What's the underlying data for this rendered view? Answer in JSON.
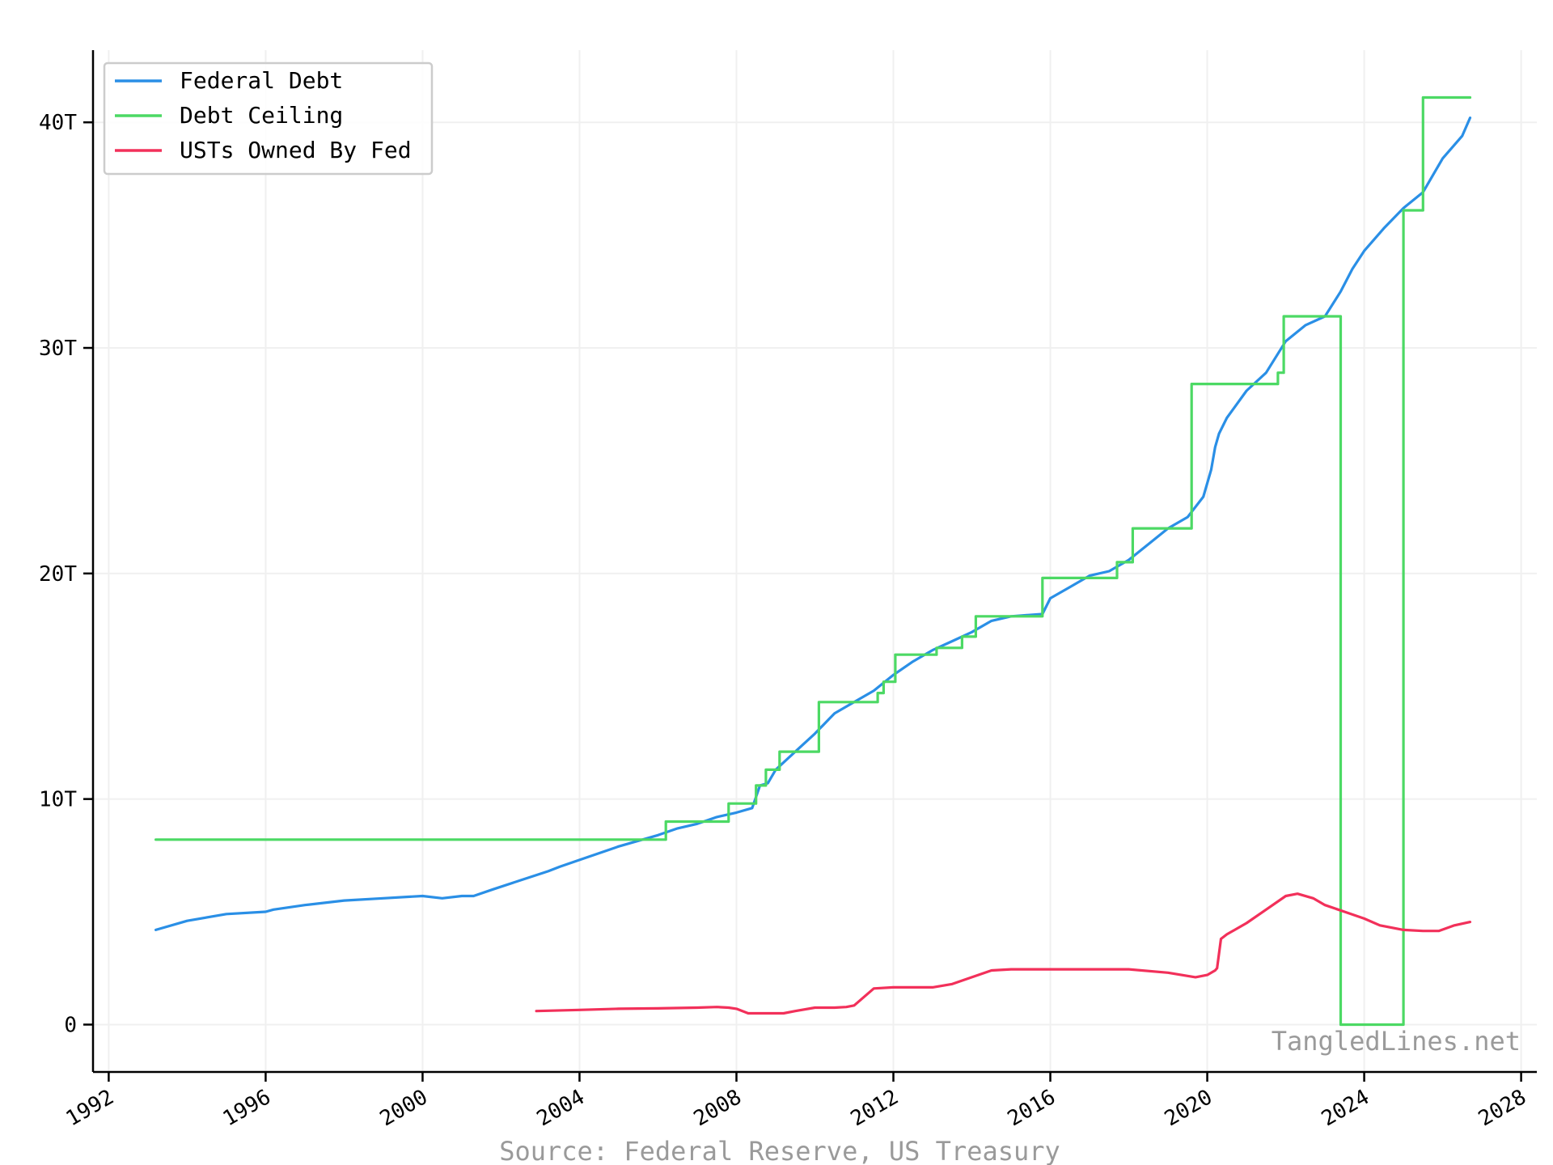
{
  "chart_data": {
    "type": "line",
    "title": "",
    "xlabel": "",
    "ylabel": "",
    "source": "Source: Federal Reserve, US Treasury",
    "watermark": "TangledLines.net",
    "xlim": [
      1991.6,
      2028.4
    ],
    "ylim": [
      -2.1,
      43.2
    ],
    "x_ticks": [
      1992,
      1996,
      2000,
      2004,
      2008,
      2012,
      2016,
      2020,
      2024,
      2028
    ],
    "x_tick_labels": [
      "1992",
      "1996",
      "2000",
      "2004",
      "2008",
      "2012",
      "2016",
      "2020",
      "2024",
      "2028"
    ],
    "y_ticks": [
      0,
      10,
      20,
      30,
      40
    ],
    "y_tick_labels": [
      "0",
      "10T",
      "20T",
      "30T",
      "40T"
    ],
    "grid": true,
    "legend_position": "top-left",
    "series": [
      {
        "name": "Federal Debt",
        "color": "#2a8fe6",
        "x": [
          1993.2,
          1994,
          1995,
          1996,
          1996.2,
          1997,
          1998,
          1999,
          2000,
          2000.5,
          2001,
          2001.3,
          2001.8,
          2002.5,
          2003.2,
          2003.5,
          2004,
          2005,
          2006,
          2006.5,
          2007,
          2007.5,
          2008,
          2008.4,
          2008.6,
          2008.8,
          2009,
          2009.5,
          2010,
          2010.5,
          2011,
          2011.5,
          2012,
          2012.5,
          2013,
          2013.5,
          2014,
          2014.5,
          2015,
          2015.8,
          2016,
          2016.5,
          2017,
          2017.5,
          2018,
          2018.5,
          2019,
          2019.5,
          2019.9,
          2020.1,
          2020.2,
          2020.3,
          2020.5,
          2021,
          2021.5,
          2022,
          2022.5,
          2023,
          2023.4,
          2023.7,
          2024,
          2024.5,
          2025,
          2025.5,
          2026,
          2026.5,
          2026.7
        ],
        "values": [
          4.2,
          4.6,
          4.9,
          5.0,
          5.1,
          5.3,
          5.5,
          5.6,
          5.7,
          5.6,
          5.7,
          5.7,
          6.0,
          6.4,
          6.8,
          7.0,
          7.3,
          7.9,
          8.4,
          8.7,
          8.9,
          9.2,
          9.4,
          9.6,
          10.6,
          10.7,
          11.3,
          12.1,
          12.9,
          13.8,
          14.3,
          14.8,
          15.5,
          16.1,
          16.6,
          17.0,
          17.4,
          17.9,
          18.1,
          18.2,
          18.9,
          19.4,
          19.9,
          20.1,
          20.6,
          21.3,
          22.0,
          22.5,
          23.4,
          24.6,
          25.6,
          26.2,
          26.9,
          28.1,
          28.9,
          30.3,
          31.0,
          31.4,
          32.5,
          33.5,
          34.3,
          35.3,
          36.2,
          36.9,
          38.4,
          39.4,
          40.2
        ]
      },
      {
        "name": "Debt Ceiling",
        "color": "#4cd964",
        "x": [
          1993.2,
          2006.2,
          2006.2,
          2007.8,
          2007.8,
          2008.5,
          2008.5,
          2008.75,
          2008.75,
          2009.1,
          2009.1,
          2010.1,
          2010.1,
          2011.6,
          2011.6,
          2011.75,
          2011.75,
          2012.05,
          2012.05,
          2013.1,
          2013.1,
          2013.75,
          2013.75,
          2014.1,
          2014.1,
          2015.8,
          2015.8,
          2017.7,
          2017.7,
          2018.1,
          2018.1,
          2019.6,
          2019.6,
          2021.8,
          2021.8,
          2021.95,
          2021.95,
          2023.4,
          2023.4,
          2025.0,
          2025.0,
          2025.5,
          2025.5,
          2026.7
        ],
        "values": [
          8.2,
          8.2,
          9.0,
          9.0,
          9.8,
          9.8,
          10.6,
          10.6,
          11.3,
          11.3,
          12.1,
          12.1,
          14.3,
          14.3,
          14.7,
          14.7,
          15.2,
          15.2,
          16.4,
          16.4,
          16.7,
          16.7,
          17.2,
          17.2,
          18.1,
          18.1,
          19.8,
          19.8,
          20.5,
          20.5,
          22.0,
          22.0,
          28.4,
          28.4,
          28.9,
          28.9,
          31.4,
          31.4,
          0,
          0,
          36.1,
          36.1,
          41.1,
          41.1
        ]
      },
      {
        "name": "USTs Owned By Fed",
        "color": "#f2305a",
        "x": [
          2002.9,
          2004,
          2005,
          2006,
          2007,
          2007.5,
          2007.8,
          2008,
          2008.3,
          2008.7,
          2009,
          2009.2,
          2009.5,
          2010,
          2010.5,
          2010.8,
          2011,
          2011.5,
          2012,
          2012.5,
          2013,
          2013.5,
          2014,
          2014.5,
          2015,
          2016,
          2017,
          2018,
          2019,
          2019.7,
          2020,
          2020.2,
          2020.25,
          2020.35,
          2020.5,
          2021,
          2021.5,
          2022,
          2022.3,
          2022.7,
          2023,
          2023.5,
          2024,
          2024.4,
          2025,
          2025.5,
          2025.9,
          2026.3,
          2026.7
        ],
        "values": [
          0.6,
          0.65,
          0.7,
          0.72,
          0.75,
          0.78,
          0.75,
          0.7,
          0.5,
          0.5,
          0.5,
          0.5,
          0.6,
          0.75,
          0.75,
          0.78,
          0.85,
          1.6,
          1.65,
          1.65,
          1.65,
          1.8,
          2.1,
          2.4,
          2.45,
          2.45,
          2.45,
          2.45,
          2.3,
          2.1,
          2.2,
          2.4,
          2.5,
          3.8,
          4.0,
          4.5,
          5.1,
          5.7,
          5.8,
          5.6,
          5.3,
          5.0,
          4.7,
          4.4,
          4.2,
          4.15,
          4.15,
          4.4,
          4.55
        ]
      }
    ]
  }
}
